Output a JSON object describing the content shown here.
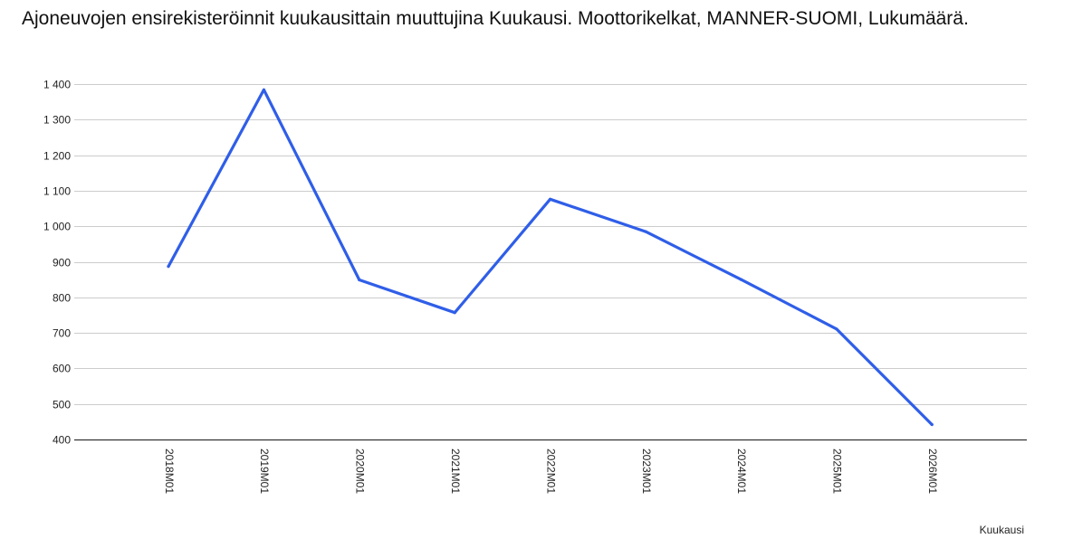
{
  "chart_data": {
    "type": "line",
    "title": "Ajoneuvojen ensirekisteröinnit kuukausittain muuttujina Kuukausi. Moottorikelkat, MANNER-SUOMI, Lukumäärä.",
    "xlabel": "Kuukausi",
    "ylabel": "",
    "categories": [
      "2018M01",
      "2019M01",
      "2020M01",
      "2021M01",
      "2022M01",
      "2023M01",
      "2024M01",
      "2025M01",
      "2026M01"
    ],
    "series": [
      {
        "values": [
          887,
          1384,
          849,
          757,
          1076,
          985,
          850,
          711,
          442
        ],
        "color": "#2f5ee8"
      }
    ],
    "ylim": [
      400,
      1400
    ],
    "yticks": [
      {
        "value": 400,
        "label": "400"
      },
      {
        "value": 500,
        "label": "500"
      },
      {
        "value": 600,
        "label": "600"
      },
      {
        "value": 700,
        "label": "700"
      },
      {
        "value": 800,
        "label": "800"
      },
      {
        "value": 900,
        "label": "900"
      },
      {
        "value": 1000,
        "label": "1 000"
      },
      {
        "value": 1100,
        "label": "1 100"
      },
      {
        "value": 1200,
        "label": "1 200"
      },
      {
        "value": 1300,
        "label": "1 300"
      },
      {
        "value": 1400,
        "label": "1 400"
      }
    ],
    "grid": true,
    "legend": "none"
  }
}
